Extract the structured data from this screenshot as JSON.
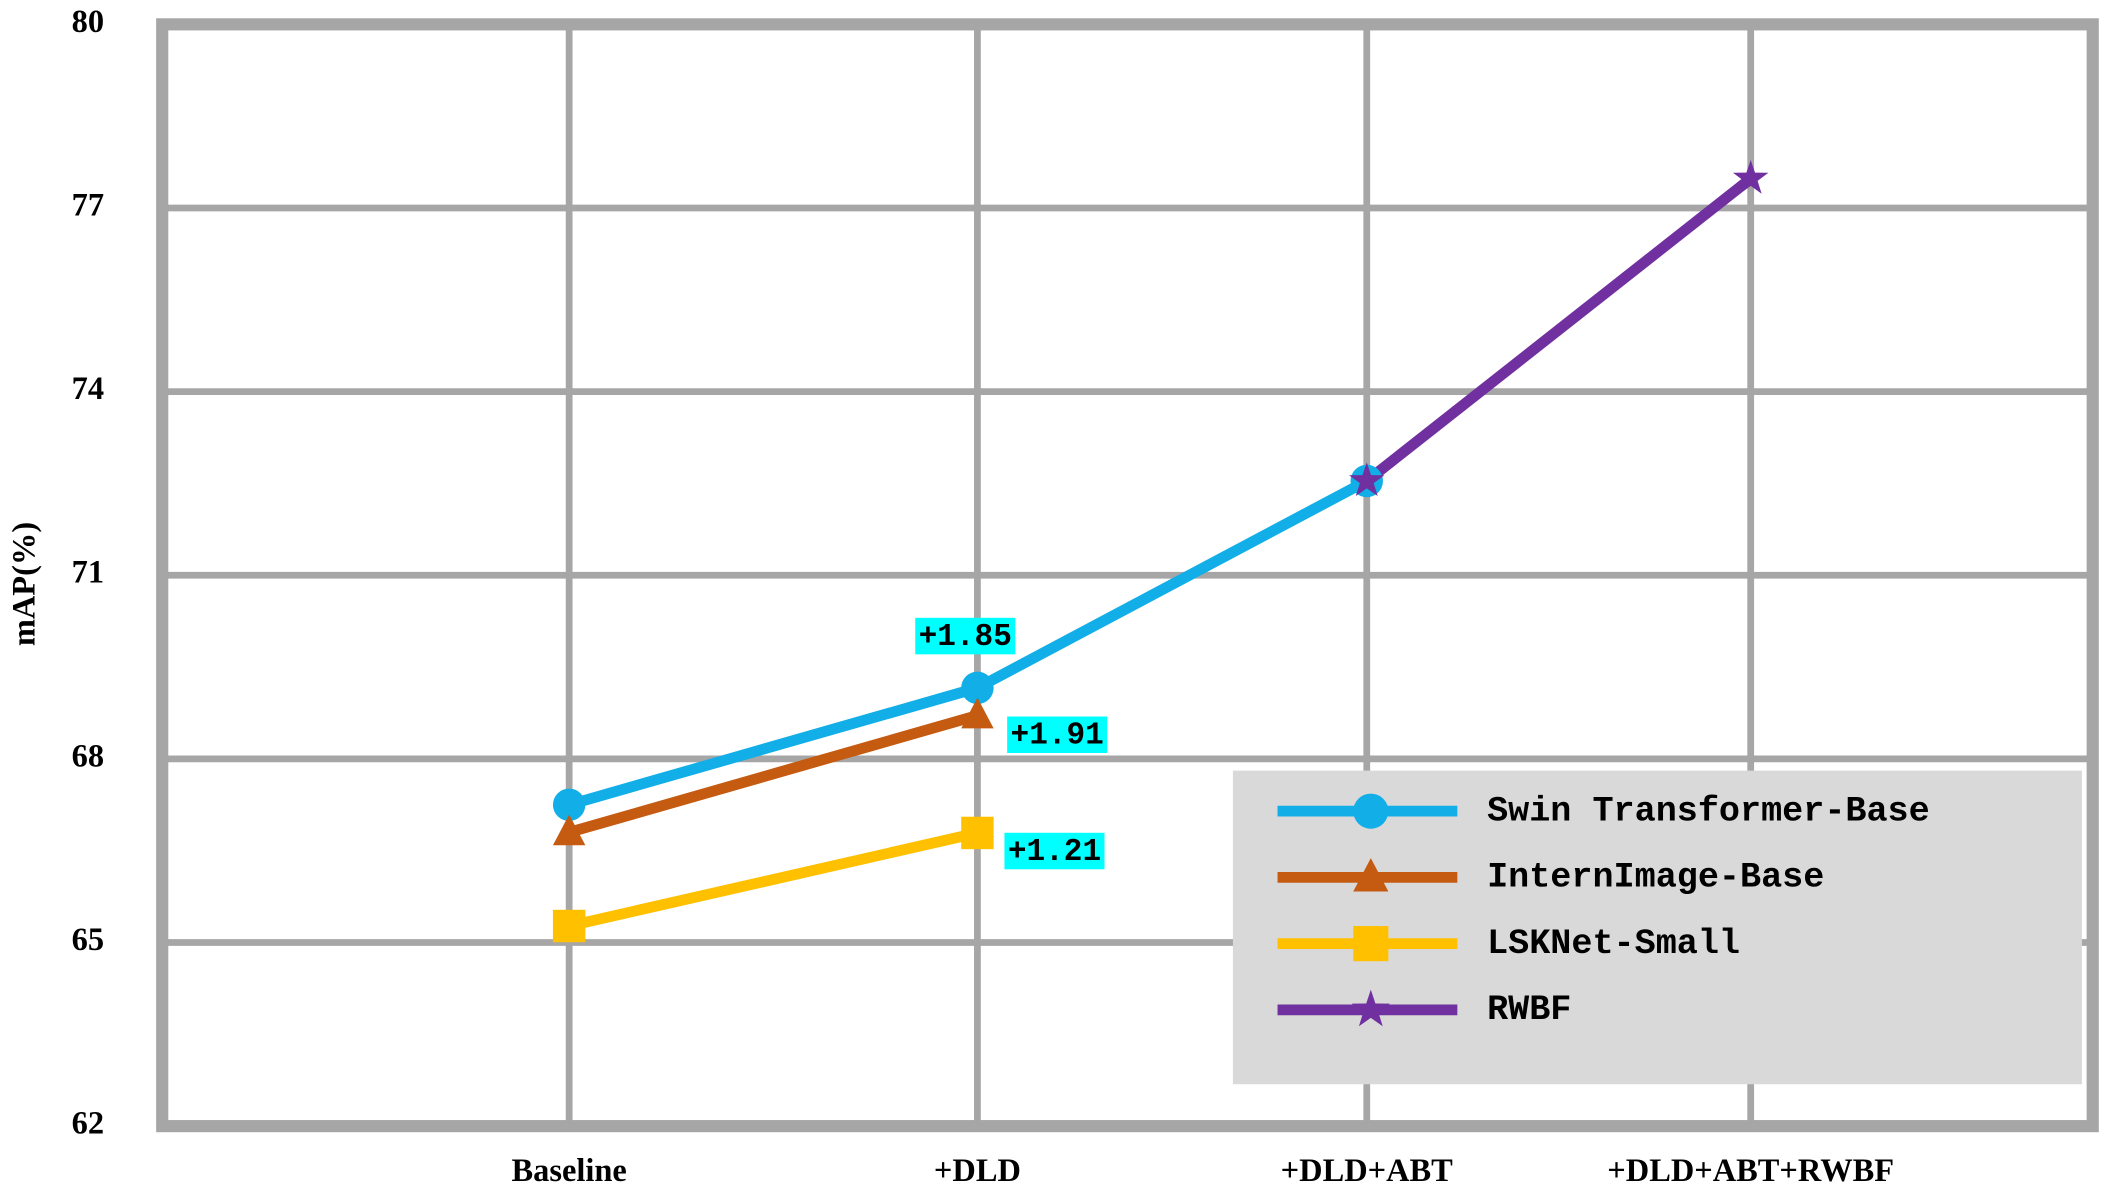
{
  "chart_data": {
    "type": "line",
    "y_label": "mAP(%)",
    "categories": [
      "Baseline",
      "+DLD",
      "+DLD+ABT",
      "+DLD+ABT+RWBF"
    ],
    "series": [
      {
        "name": "Swin Transformer-Base",
        "color": "#12aee8",
        "marker": "circle",
        "values": [
          67.25,
          69.16,
          72.54,
          null
        ]
      },
      {
        "name": "InternImage-Base",
        "color": "#c55a11",
        "marker": "triangle",
        "values": [
          66.8,
          68.71,
          null,
          null
        ]
      },
      {
        "name": "LSKNet-Small",
        "color": "#ffc000",
        "marker": "square",
        "values": [
          65.27,
          66.79,
          null,
          null
        ]
      },
      {
        "name": "RWBF",
        "color": "#7030a0",
        "marker": "star",
        "values": [
          null,
          null,
          72.54,
          77.48
        ]
      }
    ],
    "annotations": [
      "+1.85",
      "+1.91",
      "+1.21"
    ],
    "ylim": [
      62,
      80
    ],
    "yticks": [
      62,
      65,
      68,
      71,
      74,
      77,
      80
    ],
    "grid": true,
    "legend": "lower right"
  }
}
